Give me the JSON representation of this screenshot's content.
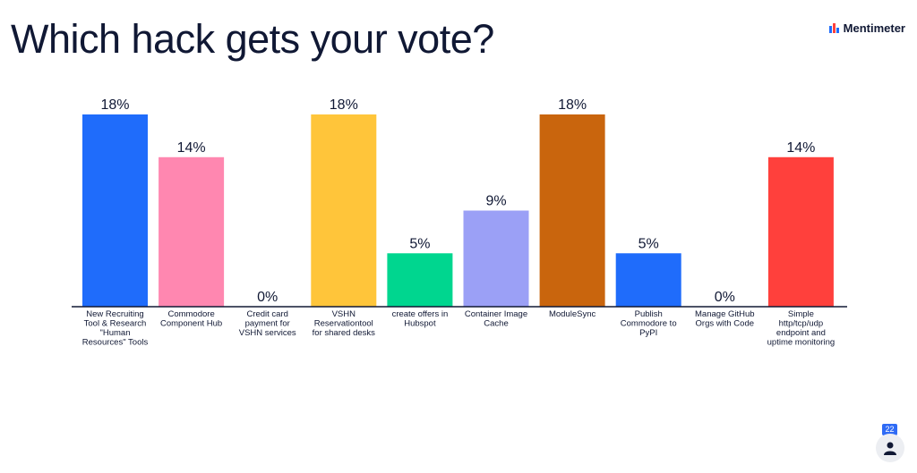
{
  "page": {
    "title": "Which hack gets your vote?",
    "brand": "Mentimeter",
    "participant_count": "22"
  },
  "icons": {
    "brand": "mentimeter-logo-icon",
    "participants": "person-icon"
  },
  "chart_data": {
    "type": "bar",
    "categories": [
      [
        "New Recruiting",
        "Tool & Research",
        "\"Human",
        "Resources\" Tools"
      ],
      [
        "Commodore",
        "Component Hub"
      ],
      [
        "Credit card",
        "payment for",
        "VSHN services"
      ],
      [
        "VSHN",
        "Reservationtool",
        "for shared desks"
      ],
      [
        "create offers in",
        "Hubspot"
      ],
      [
        "Container Image",
        "Cache"
      ],
      [
        "ModuleSync"
      ],
      [
        "Publish",
        "Commodore to",
        "PyPI"
      ],
      [
        "Manage GitHub",
        "Orgs with Code"
      ],
      [
        "Simple",
        "http/tcp/udp",
        "endpoint and",
        "uptime monitoring"
      ]
    ],
    "values": [
      18,
      14,
      0,
      18,
      5,
      9,
      18,
      5,
      0,
      14
    ],
    "labels": [
      "18%",
      "14%",
      "0%",
      "18%",
      "5%",
      "9%",
      "18%",
      "5%",
      "0%",
      "14%"
    ],
    "colors": [
      "#1f6cfb",
      "#ff87b0",
      "#d4d8e0",
      "#ffc53a",
      "#00d68f",
      "#9ba0f6",
      "#c9650d",
      "#1f6cfb",
      "#d4d8e0",
      "#ff403c"
    ],
    "ylim": [
      0,
      18
    ],
    "grid": false,
    "legend": "none"
  }
}
